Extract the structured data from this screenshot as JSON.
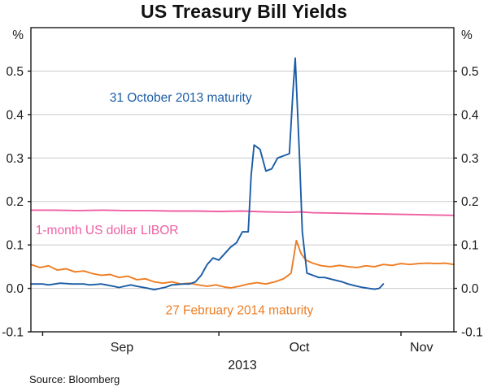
{
  "chart_data": {
    "type": "line",
    "title": "US Treasury Bill Yields",
    "y_axis": {
      "unit_label_left": "%",
      "unit_label_right": "%",
      "lim": [
        -0.1,
        0.6
      ],
      "ticks": [
        -0.1,
        0,
        0.1,
        0.2,
        0.3,
        0.4,
        0.5
      ],
      "gridlines": [
        0,
        0.1,
        0.2,
        0.3,
        0.4,
        0.5
      ]
    },
    "x_axis": {
      "range": [
        0,
        72
      ],
      "ticks": [
        {
          "label": "Sep",
          "x": 15.5
        },
        {
          "label": "Oct",
          "x": 45.7
        },
        {
          "label": "Nov",
          "x": 66.5
        }
      ],
      "boundary_ticks": [
        2,
        32,
        63
      ],
      "year_label": "2013"
    },
    "series": [
      {
        "name": "1-month US dollar LIBOR",
        "color": "#ef5fa2",
        "points": [
          [
            0,
            0.18
          ],
          [
            4,
            0.18
          ],
          [
            8,
            0.179
          ],
          [
            12,
            0.18
          ],
          [
            16,
            0.179
          ],
          [
            20,
            0.179
          ],
          [
            24,
            0.178
          ],
          [
            28,
            0.178
          ],
          [
            32,
            0.177
          ],
          [
            36,
            0.178
          ],
          [
            40,
            0.176
          ],
          [
            44,
            0.175
          ],
          [
            46,
            0.176
          ],
          [
            48,
            0.174
          ],
          [
            52,
            0.173
          ],
          [
            56,
            0.172
          ],
          [
            60,
            0.171
          ],
          [
            64,
            0.17
          ],
          [
            68,
            0.169
          ],
          [
            72,
            0.168
          ]
        ]
      },
      {
        "name": "27 February 2014 maturity",
        "color": "#ee7d23",
        "points": [
          [
            0,
            0.055
          ],
          [
            1.5,
            0.048
          ],
          [
            3,
            0.052
          ],
          [
            4.5,
            0.042
          ],
          [
            6,
            0.045
          ],
          [
            7.5,
            0.038
          ],
          [
            9,
            0.04
          ],
          [
            10.5,
            0.034
          ],
          [
            12,
            0.03
          ],
          [
            13.5,
            0.032
          ],
          [
            15,
            0.025
          ],
          [
            16.5,
            0.028
          ],
          [
            18,
            0.02
          ],
          [
            19.5,
            0.022
          ],
          [
            21,
            0.015
          ],
          [
            22.5,
            0.012
          ],
          [
            24,
            0.015
          ],
          [
            25.5,
            0.01
          ],
          [
            27,
            0.012
          ],
          [
            28.5,
            0.008
          ],
          [
            30,
            0.005
          ],
          [
            31.5,
            0.008
          ],
          [
            33,
            0.003
          ],
          [
            34,
            0.001
          ],
          [
            35.5,
            0.005
          ],
          [
            37,
            0.01
          ],
          [
            38.5,
            0.013
          ],
          [
            40,
            0.01
          ],
          [
            41.5,
            0.015
          ],
          [
            43,
            0.022
          ],
          [
            44.3,
            0.035
          ],
          [
            45.2,
            0.11
          ],
          [
            46,
            0.08
          ],
          [
            46.8,
            0.065
          ],
          [
            48,
            0.058
          ],
          [
            49.5,
            0.052
          ],
          [
            51,
            0.05
          ],
          [
            52.5,
            0.053
          ],
          [
            54,
            0.05
          ],
          [
            55.5,
            0.048
          ],
          [
            57,
            0.052
          ],
          [
            58.5,
            0.05
          ],
          [
            60,
            0.055
          ],
          [
            61.5,
            0.053
          ],
          [
            63,
            0.057
          ],
          [
            64.5,
            0.055
          ],
          [
            66,
            0.057
          ],
          [
            67.5,
            0.058
          ],
          [
            69,
            0.057
          ],
          [
            70.5,
            0.058
          ],
          [
            72,
            0.055
          ]
        ]
      },
      {
        "name": "31 October 2013 maturity",
        "color": "#1b5ca5",
        "points": [
          [
            0,
            0.01
          ],
          [
            2,
            0.01
          ],
          [
            3,
            0.008
          ],
          [
            5,
            0.012
          ],
          [
            7,
            0.01
          ],
          [
            9,
            0.01
          ],
          [
            10,
            0.008
          ],
          [
            12,
            0.01
          ],
          [
            14,
            0.005
          ],
          [
            15,
            0.002
          ],
          [
            17,
            0.008
          ],
          [
            18,
            0.005
          ],
          [
            20,
            0.0
          ],
          [
            21,
            -0.003
          ],
          [
            23,
            0.003
          ],
          [
            24,
            0.008
          ],
          [
            26,
            0.01
          ],
          [
            27,
            0.01
          ],
          [
            28,
            0.015
          ],
          [
            29,
            0.03
          ],
          [
            30,
            0.055
          ],
          [
            31,
            0.07
          ],
          [
            32,
            0.065
          ],
          [
            34,
            0.095
          ],
          [
            35,
            0.105
          ],
          [
            36,
            0.13
          ],
          [
            37,
            0.13
          ],
          [
            37.5,
            0.26
          ],
          [
            38,
            0.33
          ],
          [
            39,
            0.32
          ],
          [
            40,
            0.27
          ],
          [
            41,
            0.275
          ],
          [
            42,
            0.3
          ],
          [
            43,
            0.305
          ],
          [
            44,
            0.31
          ],
          [
            44.6,
            0.45
          ],
          [
            45,
            0.53
          ],
          [
            45.7,
            0.31
          ],
          [
            46.2,
            0.13
          ],
          [
            47,
            0.035
          ],
          [
            48,
            0.03
          ],
          [
            49,
            0.025
          ],
          [
            50,
            0.025
          ],
          [
            51.5,
            0.02
          ],
          [
            53,
            0.015
          ],
          [
            54,
            0.01
          ],
          [
            55.5,
            0.005
          ],
          [
            56.5,
            0.002
          ],
          [
            57.5,
            0.0
          ],
          [
            58.5,
            -0.002
          ],
          [
            59.3,
            0.0
          ],
          [
            60,
            0.01
          ]
        ]
      }
    ],
    "annotations": [
      {
        "text": "31 October 2013 maturity",
        "x": 25.5,
        "y": 0.43,
        "anchor": "middle",
        "color": "#1b5ca5"
      },
      {
        "text": "1-month US dollar LIBOR",
        "x": 0.8,
        "y": 0.125,
        "anchor": "start",
        "color": "#ef5fa2"
      },
      {
        "text": "27 February 2014 maturity",
        "x": 35.5,
        "y": -0.06,
        "anchor": "middle",
        "color": "#ee7d23"
      }
    ],
    "style": {
      "grid_color": "#cbcbcb",
      "frame_color": "#1a1a1a",
      "text_color": "#1a1a1a",
      "background": "#ffffff"
    }
  },
  "footer": {
    "source": "Source: Bloomberg"
  }
}
